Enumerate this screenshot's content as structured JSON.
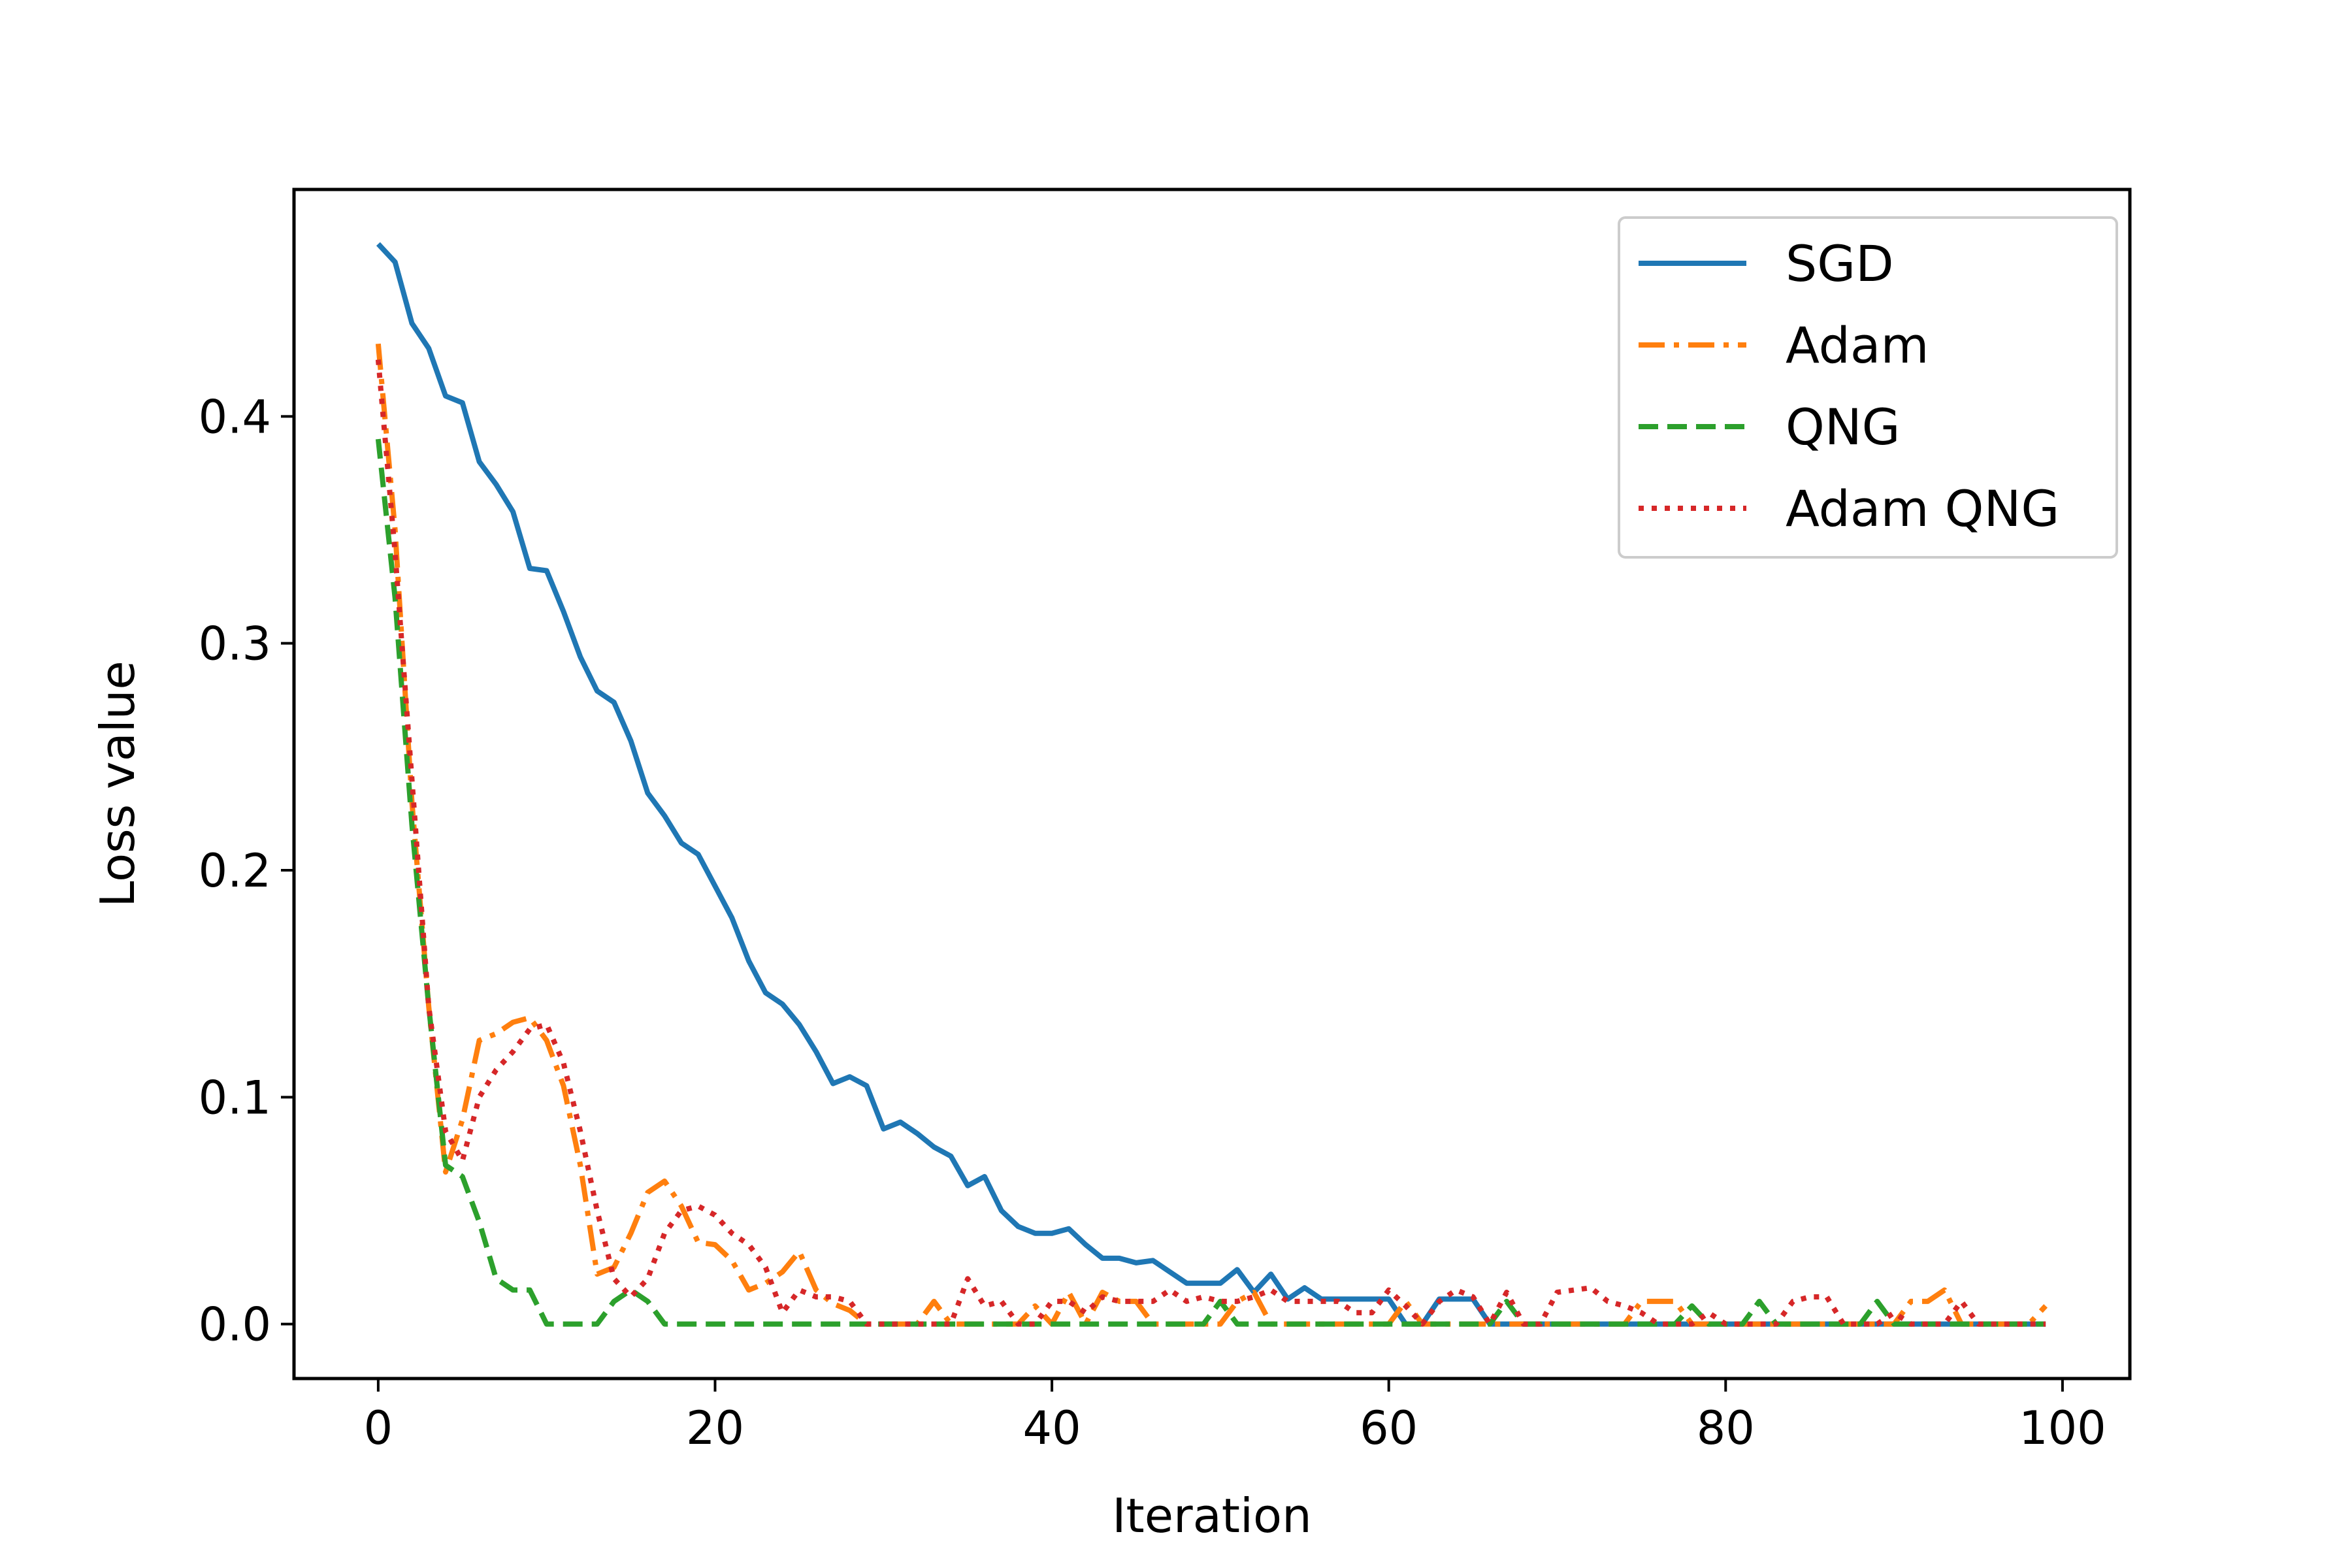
{
  "chart_data": {
    "type": "line",
    "title": "",
    "xlabel": "Iteration",
    "ylabel": "Loss value",
    "xlim": [
      -5,
      104
    ],
    "ylim": [
      -0.024,
      0.5
    ],
    "xticks": [
      0,
      20,
      40,
      60,
      80,
      100
    ],
    "xtick_labels": [
      "0",
      "20",
      "40",
      "60",
      "80",
      "100"
    ],
    "yticks": [
      0.0,
      0.1,
      0.2,
      0.3,
      0.4
    ],
    "ytick_labels": [
      "0.0",
      "0.1",
      "0.2",
      "0.3",
      "0.4"
    ],
    "grid": false,
    "legend_position": "top-right",
    "x": [
      0,
      1,
      2,
      3,
      4,
      5,
      6,
      7,
      8,
      9,
      10,
      11,
      12,
      13,
      14,
      15,
      16,
      17,
      18,
      19,
      20,
      21,
      22,
      23,
      24,
      25,
      26,
      27,
      28,
      29,
      30,
      31,
      32,
      33,
      34,
      35,
      36,
      37,
      38,
      39,
      40,
      41,
      42,
      43,
      44,
      45,
      46,
      47,
      48,
      49,
      50,
      51,
      52,
      53,
      54,
      55,
      56,
      57,
      58,
      59,
      60,
      61,
      62,
      63,
      64,
      65,
      66,
      67,
      68,
      69,
      70,
      71,
      72,
      73,
      74,
      75,
      76,
      77,
      78,
      79,
      80,
      81,
      82,
      83,
      84,
      85,
      86,
      87,
      88,
      89,
      90,
      91,
      92,
      93,
      94,
      95,
      96,
      97,
      98,
      99
    ],
    "series": [
      {
        "name": "SGD",
        "color": "#1f77b4",
        "style": "solid",
        "values": [
          0.476,
          0.468,
          0.441,
          0.43,
          0.409,
          0.406,
          0.38,
          0.37,
          0.358,
          0.333,
          0.332,
          0.314,
          0.294,
          0.279,
          0.274,
          0.257,
          0.234,
          0.224,
          0.212,
          0.207,
          0.193,
          0.179,
          0.16,
          0.146,
          0.141,
          0.132,
          0.12,
          0.106,
          0.109,
          0.105,
          0.086,
          0.089,
          0.084,
          0.078,
          0.074,
          0.061,
          0.065,
          0.05,
          0.043,
          0.04,
          0.04,
          0.042,
          0.035,
          0.029,
          0.029,
          0.027,
          0.028,
          0.023,
          0.018,
          0.018,
          0.018,
          0.024,
          0.014,
          0.022,
          0.011,
          0.016,
          0.011,
          0.011,
          0.011,
          0.011,
          0.011,
          0.0,
          0.0,
          0.011,
          0.011,
          0.011,
          0.0,
          0.0,
          0.0,
          0.0,
          0.0,
          0.0,
          0.0,
          0.0,
          0.0,
          0.0,
          0.0,
          0.0,
          0.0,
          0.0,
          0.0,
          0.0,
          0.0,
          0.0,
          0.0,
          0.0,
          0.0,
          0.0,
          0.0,
          0.0,
          0.0,
          0.0,
          0.0,
          0.0,
          0.0,
          0.0,
          0.0,
          0.0,
          0.0,
          0.0
        ]
      },
      {
        "name": "Adam",
        "color": "#ff7f0e",
        "style": "dashdot",
        "values": [
          0.432,
          0.35,
          0.23,
          0.14,
          0.067,
          0.09,
          0.125,
          0.128,
          0.133,
          0.135,
          0.125,
          0.105,
          0.07,
          0.022,
          0.025,
          0.04,
          0.058,
          0.063,
          0.052,
          0.036,
          0.035,
          0.028,
          0.015,
          0.018,
          0.023,
          0.032,
          0.015,
          0.009,
          0.006,
          0.0,
          0.0,
          0.0,
          0.0,
          0.01,
          0.0,
          0.0,
          0.0,
          0.0,
          0.0,
          0.008,
          0.0,
          0.014,
          0.0,
          0.014,
          0.01,
          0.01,
          0.0,
          0.0,
          0.0,
          0.0,
          0.0,
          0.01,
          0.014,
          0.0,
          0.0,
          0.0,
          0.0,
          0.0,
          0.0,
          0.0,
          0.0,
          0.01,
          0.0,
          0.0,
          0.0,
          0.0,
          0.0,
          0.0,
          0.0,
          0.0,
          0.0,
          0.0,
          0.0,
          0.0,
          0.0,
          0.01,
          0.01,
          0.01,
          0.0,
          0.0,
          0.0,
          0.0,
          0.0,
          0.0,
          0.0,
          0.0,
          0.0,
          0.0,
          0.0,
          0.0,
          0.0,
          0.01,
          0.01,
          0.015,
          0.0,
          0.0,
          0.0,
          0.0,
          0.0,
          0.008
        ]
      },
      {
        "name": "QNG",
        "color": "#2ca02c",
        "style": "dashed",
        "values": [
          0.39,
          0.32,
          0.22,
          0.14,
          0.07,
          0.065,
          0.045,
          0.02,
          0.015,
          0.015,
          0.0,
          0.0,
          0.0,
          0.0,
          0.01,
          0.015,
          0.01,
          0.0,
          0.0,
          0.0,
          0.0,
          0.0,
          0.0,
          0.0,
          0.0,
          0.0,
          0.0,
          0.0,
          0.0,
          0.0,
          0.0,
          0.0,
          0.0,
          0.0,
          0.0,
          0.0,
          0.0,
          0.0,
          0.0,
          0.0,
          0.0,
          0.0,
          0.0,
          0.0,
          0.0,
          0.0,
          0.0,
          0.0,
          0.0,
          0.0,
          0.01,
          0.0,
          0.0,
          0.0,
          0.0,
          0.0,
          0.0,
          0.0,
          0.0,
          0.0,
          0.0,
          0.0,
          0.0,
          0.0,
          0.0,
          0.0,
          0.0,
          0.01,
          0.0,
          0.0,
          0.0,
          0.0,
          0.0,
          0.0,
          0.0,
          0.0,
          0.0,
          0.0,
          0.008,
          0.0,
          0.0,
          0.0,
          0.01,
          0.0,
          0.0,
          0.0,
          0.0,
          0.0,
          0.0,
          0.01,
          0.0,
          0.0,
          0.0,
          0.0,
          0.0,
          0.0,
          0.0,
          0.0,
          0.0,
          0.0
        ]
      },
      {
        "name": "Adam QNG",
        "color": "#d62728",
        "style": "dotted",
        "values": [
          0.425,
          0.34,
          0.24,
          0.14,
          0.085,
          0.072,
          0.1,
          0.112,
          0.12,
          0.13,
          0.132,
          0.115,
          0.085,
          0.05,
          0.02,
          0.012,
          0.02,
          0.04,
          0.05,
          0.052,
          0.048,
          0.04,
          0.035,
          0.025,
          0.005,
          0.015,
          0.012,
          0.012,
          0.01,
          0.0,
          0.0,
          0.0,
          0.0,
          0.0,
          0.0,
          0.02,
          0.008,
          0.01,
          0.0,
          0.0,
          0.01,
          0.01,
          0.005,
          0.012,
          0.01,
          0.01,
          0.01,
          0.015,
          0.01,
          0.012,
          0.01,
          0.01,
          0.012,
          0.015,
          0.01,
          0.01,
          0.01,
          0.01,
          0.005,
          0.005,
          0.015,
          0.008,
          0.0,
          0.01,
          0.015,
          0.012,
          0.0,
          0.014,
          0.0,
          0.0,
          0.014,
          0.015,
          0.016,
          0.01,
          0.008,
          0.005,
          0.0,
          0.0,
          0.0,
          0.005,
          0.0,
          0.0,
          0.0,
          0.0,
          0.01,
          0.012,
          0.012,
          0.0,
          0.0,
          0.0,
          0.005,
          0.0,
          0.0,
          0.0,
          0.01,
          0.0,
          0.0,
          0.0,
          0.0,
          0.0
        ]
      }
    ]
  }
}
